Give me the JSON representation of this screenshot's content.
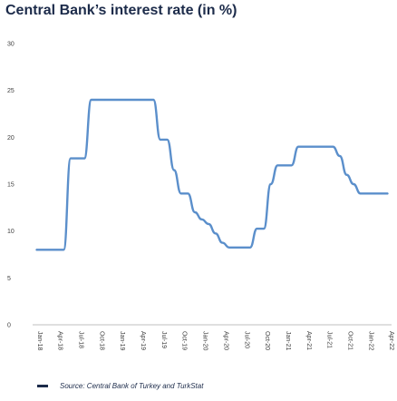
{
  "title": "Central Bank’s interest rate (in %)",
  "source": "Source: Central Bank of Turkey and TurkStat",
  "chart_data": {
    "type": "line",
    "title": "Central Bank’s interest rate (in %)",
    "xlabel": "",
    "ylabel": "",
    "ylim": [
      0,
      30
    ],
    "yticks": [
      0,
      5,
      10,
      15,
      20,
      25,
      30
    ],
    "grid": false,
    "x": [
      "Jan-18",
      "Feb-18",
      "Mar-18",
      "Apr-18",
      "May-18",
      "Jun-18",
      "Jul-18",
      "Aug-18",
      "Sep-18",
      "Oct-18",
      "Nov-18",
      "Dec-18",
      "Jan-19",
      "Feb-19",
      "Mar-19",
      "Apr-19",
      "May-19",
      "Jun-19",
      "Jul-19",
      "Aug-19",
      "Sep-19",
      "Oct-19",
      "Nov-19",
      "Dec-19",
      "Jan-20",
      "Feb-20",
      "Mar-20",
      "Apr-20",
      "May-20",
      "Jun-20",
      "Jul-20",
      "Aug-20",
      "Sep-20",
      "Oct-20",
      "Nov-20",
      "Dec-20",
      "Jan-21",
      "Feb-21",
      "Mar-21",
      "Apr-21",
      "May-21",
      "Jun-21",
      "Jul-21",
      "Aug-21",
      "Sep-21",
      "Oct-21",
      "Nov-21",
      "Dec-21",
      "Jan-22",
      "Feb-22",
      "Mar-22",
      "Apr-22"
    ],
    "tick_labels": [
      "Jan-18",
      "Apr-18",
      "Jul-18",
      "Oct-18",
      "Jan-19",
      "Apr-19",
      "Jul-19",
      "Oct-19",
      "Jan-20",
      "Apr-20",
      "Jul-20",
      "Oct-20",
      "Jan-21",
      "Apr-21",
      "Jul-21",
      "Oct-21",
      "Jan-22",
      "Apr-22"
    ],
    "series": [
      {
        "color": "#5b8fcb",
        "values": [
          8,
          8,
          8,
          8,
          8,
          17.75,
          17.75,
          17.75,
          24,
          24,
          24,
          24,
          24,
          24,
          24,
          24,
          24,
          24,
          19.75,
          19.75,
          16.5,
          14,
          14,
          12,
          11.25,
          10.75,
          9.75,
          8.75,
          8.25,
          8.25,
          8.25,
          8.25,
          10.25,
          10.25,
          15,
          17,
          17,
          17,
          19,
          19,
          19,
          19,
          19,
          19,
          18,
          16,
          15,
          14,
          14,
          14,
          14,
          14
        ]
      }
    ]
  }
}
